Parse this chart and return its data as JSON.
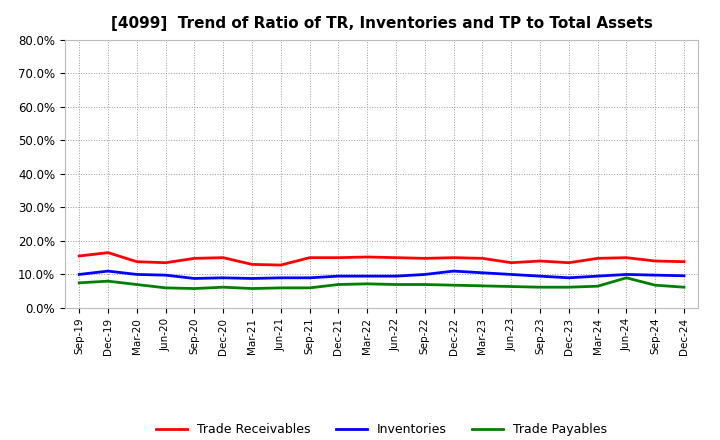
{
  "title": "[4099]  Trend of Ratio of TR, Inventories and TP to Total Assets",
  "x_labels": [
    "Sep-19",
    "Dec-19",
    "Mar-20",
    "Jun-20",
    "Sep-20",
    "Dec-20",
    "Mar-21",
    "Jun-21",
    "Sep-21",
    "Dec-21",
    "Mar-22",
    "Jun-22",
    "Sep-22",
    "Dec-22",
    "Mar-23",
    "Jun-23",
    "Sep-23",
    "Dec-23",
    "Mar-24",
    "Jun-24",
    "Sep-24",
    "Dec-24"
  ],
  "trade_receivables": [
    0.155,
    0.165,
    0.138,
    0.135,
    0.148,
    0.15,
    0.13,
    0.128,
    0.15,
    0.15,
    0.152,
    0.15,
    0.148,
    0.15,
    0.148,
    0.135,
    0.14,
    0.135,
    0.148,
    0.15,
    0.14,
    0.138
  ],
  "inventories": [
    0.1,
    0.11,
    0.1,
    0.098,
    0.088,
    0.09,
    0.088,
    0.09,
    0.09,
    0.095,
    0.095,
    0.095,
    0.1,
    0.11,
    0.105,
    0.1,
    0.095,
    0.09,
    0.095,
    0.1,
    0.098,
    0.096
  ],
  "trade_payables": [
    0.075,
    0.08,
    0.07,
    0.06,
    0.058,
    0.062,
    0.058,
    0.06,
    0.06,
    0.07,
    0.072,
    0.07,
    0.07,
    0.068,
    0.066,
    0.064,
    0.062,
    0.062,
    0.065,
    0.09,
    0.068,
    0.062
  ],
  "ylim": [
    0.0,
    0.8
  ],
  "yticks": [
    0.0,
    0.1,
    0.2,
    0.3,
    0.4,
    0.5,
    0.6,
    0.7,
    0.8
  ],
  "line_colors": {
    "trade_receivables": "#FF0000",
    "inventories": "#0000FF",
    "trade_payables": "#008000"
  },
  "legend_labels": [
    "Trade Receivables",
    "Inventories",
    "Trade Payables"
  ],
  "background_color": "#FFFFFF",
  "grid_color": "#999999"
}
